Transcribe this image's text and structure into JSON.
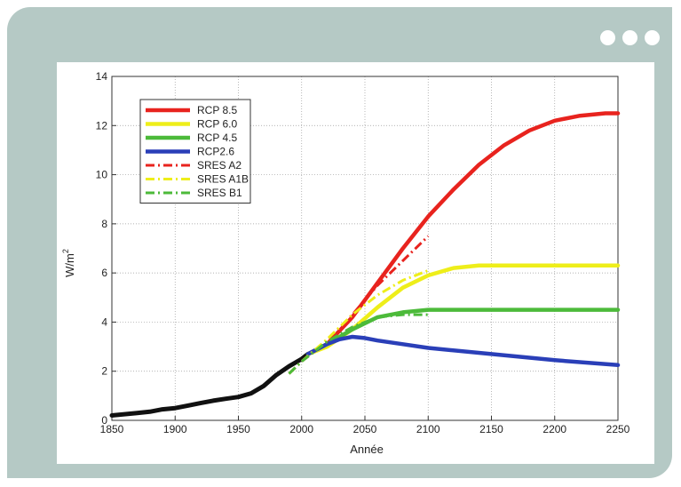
{
  "window": {
    "controls": [
      "dot",
      "dot",
      "dot"
    ]
  },
  "chart_data": {
    "type": "line",
    "title": "",
    "xlabel": "Année",
    "ylabel": "W/m",
    "ylabel_superscript": "2",
    "xlim": [
      1850,
      2250
    ],
    "ylim": [
      0,
      14
    ],
    "xticks": [
      "1850",
      "1900",
      "1950",
      "2000",
      "2050",
      "2100",
      "2150",
      "2200",
      "2250"
    ],
    "yticks": [
      "0",
      "2",
      "4",
      "6",
      "8",
      "10",
      "12",
      "14"
    ],
    "grid": true,
    "legend_position": "top-left",
    "series": [
      {
        "name": "",
        "color": "#111111",
        "style": "solid",
        "legend": false,
        "x": [
          1850,
          1870,
          1880,
          1890,
          1900,
          1910,
          1920,
          1930,
          1940,
          1950,
          1960,
          1970,
          1980,
          1990,
          2000,
          2005
        ],
        "y": [
          0.2,
          0.3,
          0.35,
          0.45,
          0.5,
          0.6,
          0.7,
          0.8,
          0.88,
          0.95,
          1.1,
          1.4,
          1.85,
          2.2,
          2.5,
          2.7
        ]
      },
      {
        "name": "RCP 8.5",
        "color": "#e8231e",
        "style": "solid",
        "x": [
          2005,
          2020,
          2040,
          2060,
          2080,
          2100,
          2120,
          2140,
          2160,
          2180,
          2200,
          2220,
          2240,
          2250
        ],
        "y": [
          2.7,
          3.1,
          4.2,
          5.6,
          7.0,
          8.3,
          9.4,
          10.4,
          11.2,
          11.8,
          12.2,
          12.4,
          12.5,
          12.5
        ]
      },
      {
        "name": "RCP 6.0",
        "color": "#eeee1a",
        "style": "solid",
        "x": [
          2005,
          2020,
          2040,
          2060,
          2080,
          2100,
          2120,
          2140,
          2160,
          2200,
          2250
        ],
        "y": [
          2.7,
          3.0,
          3.7,
          4.6,
          5.4,
          5.9,
          6.2,
          6.3,
          6.3,
          6.3,
          6.3
        ]
      },
      {
        "name": "RCP 4.5",
        "color": "#4cba3a",
        "style": "solid",
        "x": [
          2005,
          2020,
          2040,
          2060,
          2080,
          2100,
          2150,
          2200,
          2250
        ],
        "y": [
          2.7,
          3.1,
          3.7,
          4.2,
          4.4,
          4.5,
          4.5,
          4.5,
          4.5
        ]
      },
      {
        "name": "RCP2.6",
        "color": "#2a3fb8",
        "style": "solid",
        "x": [
          2005,
          2020,
          2030,
          2040,
          2050,
          2060,
          2080,
          2100,
          2150,
          2200,
          2250
        ],
        "y": [
          2.7,
          3.1,
          3.3,
          3.4,
          3.35,
          3.25,
          3.1,
          2.95,
          2.7,
          2.45,
          2.25
        ]
      },
      {
        "name": "SRES A2",
        "color": "#e8231e",
        "style": "dashdot",
        "x": [
          1990,
          2000,
          2020,
          2040,
          2060,
          2080,
          2100
        ],
        "y": [
          1.9,
          2.4,
          3.2,
          4.3,
          5.5,
          6.5,
          7.5
        ]
      },
      {
        "name": "SRES A1B",
        "color": "#eeee1a",
        "style": "dashdot",
        "x": [
          1990,
          2000,
          2020,
          2040,
          2060,
          2080,
          2100
        ],
        "y": [
          1.9,
          2.4,
          3.3,
          4.3,
          5.1,
          5.7,
          6.1
        ]
      },
      {
        "name": "SRES B1",
        "color": "#4cba3a",
        "style": "dashdot",
        "x": [
          1990,
          2000,
          2020,
          2040,
          2060,
          2080,
          2100
        ],
        "y": [
          1.9,
          2.4,
          3.2,
          3.8,
          4.2,
          4.3,
          4.3
        ]
      }
    ]
  }
}
